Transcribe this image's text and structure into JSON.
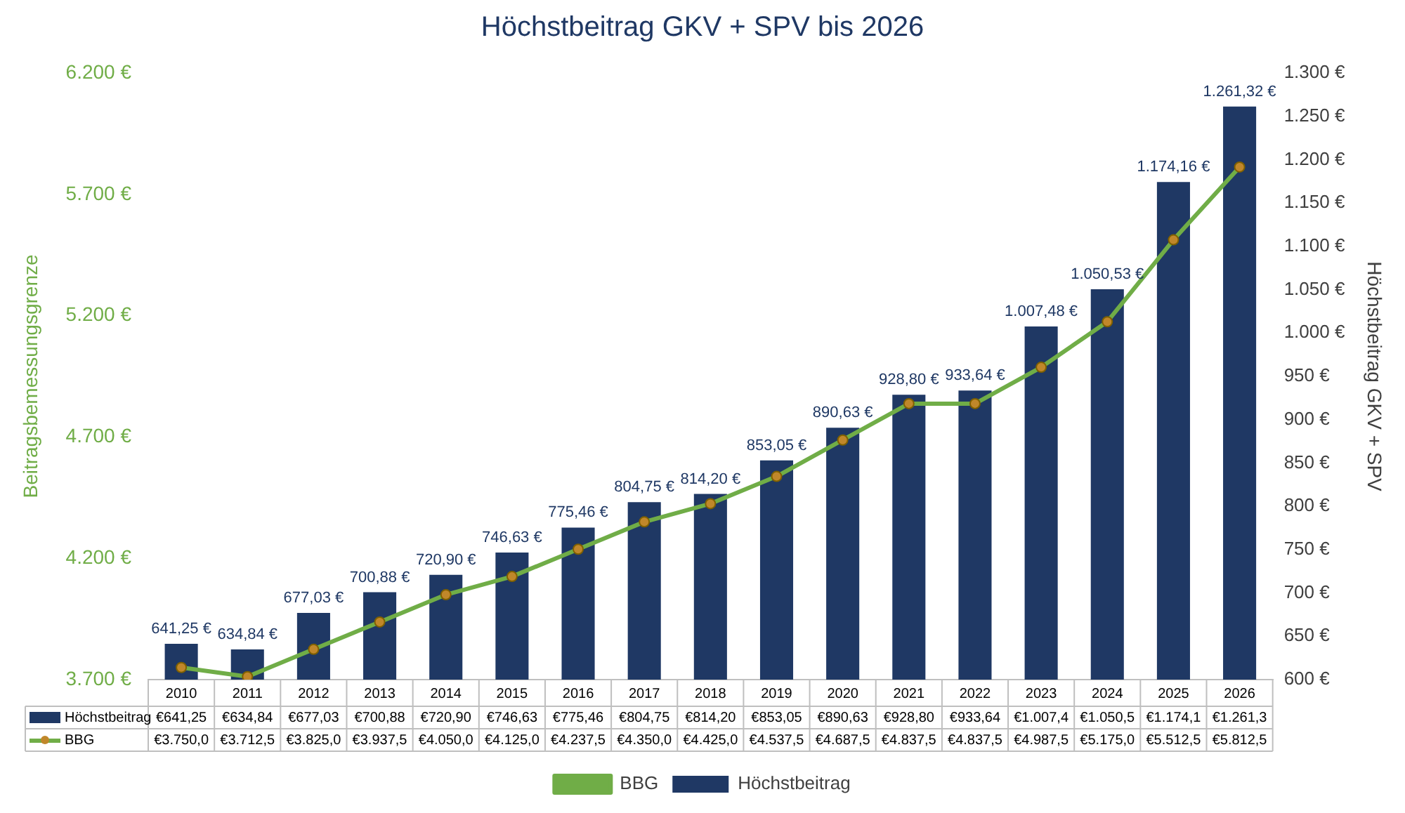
{
  "chart_data": {
    "type": "bar",
    "title": "Höchstbeitrag GKV + SPV bis 2026",
    "ylabel": "Beitragsbemessungsgrenze",
    "y2label": "Höchstbeitrag GKV + SPV",
    "categories": [
      "2010",
      "2011",
      "2012",
      "2013",
      "2014",
      "2015",
      "2016",
      "2017",
      "2018",
      "2019",
      "2020",
      "2021",
      "2022",
      "2023",
      "2024",
      "2025",
      "2026"
    ],
    "series": [
      {
        "name": "Höchstbeitrag",
        "axis": "y2",
        "color": "#1f3864",
        "values": [
          641.25,
          634.84,
          677.03,
          700.88,
          720.9,
          746.63,
          775.46,
          804.75,
          814.2,
          853.05,
          890.63,
          928.8,
          933.64,
          1007.48,
          1050.53,
          1174.16,
          1261.32
        ],
        "value_labels": [
          "641,25 €",
          "634,84 €",
          "677,03 €",
          "700,88 €",
          "720,90 €",
          "746,63 €",
          "775,46 €",
          "804,75 €",
          "814,20 €",
          "853,05 €",
          "890,63 €",
          "928,80 €",
          "933,64 €",
          "1.007,48 €",
          "1.050,53 €",
          "1.174,16 €",
          "1.261,32 €"
        ]
      },
      {
        "name": "BBG",
        "type": "line",
        "color": "#70ad47",
        "values": [
          3750,
          3712.5,
          3825,
          3937.5,
          4050,
          4125,
          4237.5,
          4350,
          4425,
          4537.5,
          4687.5,
          4837.5,
          4837.5,
          4987.5,
          5175,
          5512.5,
          5812.5
        ],
        "value_labels": [
          "€3.750,0",
          "€3.712,5",
          "€3.825,0",
          "€3.937,5",
          "€4.050,0",
          "€4.125,0",
          "€4.237,5",
          "€4.350,0",
          "€4.425,0",
          "€4.537,5",
          "€4.687,5",
          "€4.837,5",
          "€4.837,5",
          "€4.987,5",
          "€5.175,0",
          "€5.512,5",
          "€5.812,5"
        ]
      }
    ],
    "annotations": [
      "€641,25",
      "€634,84",
      "€677,03",
      "€700,88",
      "€720,90",
      "€746,63",
      "€775,46",
      "€804,75",
      "€814,20",
      "€853,05",
      "€890,63",
      "€928,80",
      "€933,64",
      "€1.007,4",
      "€1.050,5",
      "€1.174,1",
      "€1.261,3"
    ],
    "ylim": [
      3700,
      6200
    ],
    "yticks": [
      {
        "value": 3700,
        "label": "3.700 €"
      },
      {
        "value": 4200,
        "label": "4.200 €"
      },
      {
        "value": 4700,
        "label": "4.700 €"
      },
      {
        "value": 5200,
        "label": "5.200 €"
      },
      {
        "value": 5700,
        "label": "5.700 €"
      },
      {
        "value": 6200,
        "label": "6.200 €"
      }
    ],
    "y2lim": [
      600,
      1300
    ],
    "y2ticks": [
      {
        "value": 600,
        "label": "600 €"
      },
      {
        "value": 650,
        "label": "650 €"
      },
      {
        "value": 700,
        "label": "700 €"
      },
      {
        "value": 750,
        "label": "750 €"
      },
      {
        "value": 800,
        "label": "800 €"
      },
      {
        "value": 850,
        "label": "850 €"
      },
      {
        "value": 900,
        "label": "900 €"
      },
      {
        "value": 950,
        "label": "950 €"
      },
      {
        "value": 1000,
        "label": "1.000 €"
      },
      {
        "value": 1050,
        "label": "1.050 €"
      },
      {
        "value": 1100,
        "label": "1.100 €"
      },
      {
        "value": 1150,
        "label": "1.150 €"
      },
      {
        "value": 1200,
        "label": "1.200 €"
      },
      {
        "value": 1250,
        "label": "1.250 €"
      },
      {
        "value": 1300,
        "label": "1.300 €"
      }
    ],
    "grid": false,
    "legend": "bottom",
    "marker": "circle",
    "line_style": "solid"
  }
}
